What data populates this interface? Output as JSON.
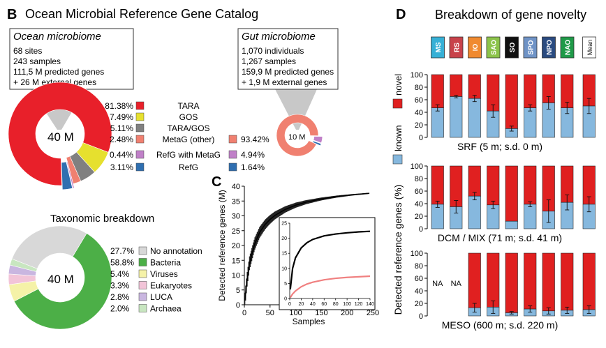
{
  "panel_b": {
    "letter": "B",
    "title": "Ocean Microbial Reference Gene Catalog",
    "ocean_box": {
      "title": "Ocean microbiome",
      "lines": [
        "68 sites",
        "243 samples",
        "111,5 M predicted genes",
        "+ 26 M external genes"
      ]
    },
    "gut_box": {
      "title": "Gut microbiome",
      "lines": [
        "1,070 individuals",
        "1,267 samples",
        "159,9 M predicted genes",
        "+ 1,9 M external genes"
      ]
    },
    "ocean_center": "40 M",
    "gut_center": "10 M",
    "taxo_title": "Taxonomic breakdown",
    "taxo_center": "40 M"
  },
  "panel_c": {
    "letter": "C"
  },
  "panel_d": {
    "letter": "D",
    "title": "Breakdown of gene novelty"
  },
  "colors": {
    "tara": "#e8202a",
    "gos": "#e6e02e",
    "taragos": "#808080",
    "metag": "#f08070",
    "refgmeta": "#c080c8",
    "refg": "#2f6fb0",
    "no_annot": "#d8d8d8",
    "bacteria": "#4caf47",
    "viruses": "#f5f2a8",
    "eukaryotes": "#f2c4d8",
    "luca": "#c9b6e0",
    "archaea": "#c8e6c0",
    "novel": "#e02020",
    "known": "#86b8de"
  },
  "chart_data": [
    {
      "type": "pie",
      "title": "",
      "slices": [
        {
          "label": "TARA",
          "ocean": "81.38%",
          "value": 81.38,
          "color": "#e8202a"
        },
        {
          "label": "GOS",
          "ocean": "7.49%",
          "value": 7.49,
          "color": "#e6e02e"
        },
        {
          "label": "TARA/GOS",
          "ocean": "5.11%",
          "value": 5.11,
          "color": "#808080"
        },
        {
          "label": "MetaG (other)",
          "ocean": "2.48%",
          "value": 2.48,
          "color": "#f08070",
          "gut": "93.42%",
          "gut_value": 93.42
        },
        {
          "label": "RefG with MetaG",
          "ocean": "0.44%",
          "value": 0.44,
          "color": "#c080c8",
          "gut": "4.94%",
          "gut_value": 4.94
        },
        {
          "label": "RefG",
          "ocean": "3.11%",
          "value": 3.11,
          "color": "#2f6fb0",
          "gut": "1.64%",
          "gut_value": 1.64
        }
      ]
    },
    {
      "type": "pie",
      "title": "Taxonomic breakdown",
      "slices": [
        {
          "label": "No annotation",
          "pct": "27.7%",
          "value": 27.7,
          "color": "#d8d8d8"
        },
        {
          "label": "Bacteria",
          "pct": "58.8%",
          "value": 58.8,
          "color": "#4caf47"
        },
        {
          "label": "Viruses",
          "pct": "5.4%",
          "value": 5.4,
          "color": "#f5f2a8"
        },
        {
          "label": "Eukaryotes",
          "pct": "3.3%",
          "value": 3.3,
          "color": "#f2c4d8"
        },
        {
          "label": "LUCA",
          "pct": "2.8%",
          "value": 2.8,
          "color": "#c9b6e0"
        },
        {
          "label": "Archaea",
          "pct": "2.0%",
          "value": 2.0,
          "color": "#c8e6c0"
        }
      ]
    },
    {
      "type": "line",
      "xlabel": "Samples",
      "ylabel": "Detected reference genes (M)",
      "xlim": [
        0,
        250
      ],
      "ylim": [
        0,
        40
      ],
      "xticks": [
        0,
        50,
        100,
        150,
        200,
        250
      ],
      "yticks": [
        0,
        5,
        10,
        15,
        20,
        25,
        30,
        35,
        40
      ],
      "series": [
        {
          "x": [
            1,
            5,
            10,
            20,
            30,
            40,
            50,
            60,
            80,
            100,
            120,
            150,
            180,
            210,
            243
          ],
          "y": [
            1.5,
            8,
            14,
            20.5,
            24.5,
            27,
            28.8,
            30.2,
            32.2,
            33.6,
            34.6,
            35.7,
            36.5,
            37.1,
            37.6
          ]
        }
      ],
      "inset": {
        "xlim": [
          0,
          140
        ],
        "ylim": [
          0,
          25
        ],
        "xticks": [
          0,
          20,
          40,
          60,
          80,
          100,
          120,
          140
        ],
        "yticks": [
          0,
          5,
          10,
          15,
          20,
          25
        ],
        "series": [
          {
            "color": "#000000",
            "x": [
              1,
              5,
              10,
              20,
              30,
              40,
              60,
              80,
              100,
              120,
              140
            ],
            "y": [
              3,
              10,
              13.5,
              16.8,
              18.5,
              19.6,
              20.8,
              21.4,
              21.8,
              22.1,
              22.3
            ]
          },
          {
            "color": "#f08080",
            "x": [
              1,
              5,
              10,
              20,
              30,
              40,
              60,
              80,
              100,
              120,
              140
            ],
            "y": [
              0.3,
              1.5,
              2.5,
              3.9,
              4.8,
              5.4,
              6.2,
              6.7,
              7.0,
              7.2,
              7.4
            ]
          }
        ]
      }
    },
    {
      "type": "bar",
      "title": "Breakdown of gene novelty",
      "ylabel": "Detected reference genes (%)",
      "legend": [
        "novel",
        "known"
      ],
      "ylim": [
        0,
        100
      ],
      "yticks": [
        0,
        20,
        40,
        60,
        80,
        100
      ],
      "categories": [
        {
          "code": "MS",
          "color": "#36b0d6",
          "dark": false
        },
        {
          "code": "RS",
          "color": "#c8424a",
          "dark": false
        },
        {
          "code": "IO",
          "color": "#f08a30",
          "dark": false
        },
        {
          "code": "SAO",
          "color": "#8cc34a",
          "dark": false
        },
        {
          "code": "SO",
          "color": "#111111",
          "dark": false
        },
        {
          "code": "SPO",
          "color": "#6f93c6",
          "dark": false
        },
        {
          "code": "NPO",
          "color": "#2a4b80",
          "dark": false
        },
        {
          "code": "NAO",
          "color": "#1f9a48",
          "dark": false
        },
        {
          "code": "Mean",
          "color": "#ffffff",
          "dark": true
        }
      ],
      "rows": [
        {
          "label": "SRF (5 m; s.d. 0 m)",
          "known": [
            47,
            65,
            62,
            42,
            14,
            47,
            55,
            47,
            50
          ],
          "err": [
            5,
            2,
            5,
            10,
            4,
            5,
            10,
            9,
            12
          ]
        },
        {
          "label": "DCM / MIX (71 m; s.d. 41 m)",
          "known": [
            39,
            35,
            52,
            38,
            12,
            39,
            28,
            42,
            39
          ],
          "err": [
            5,
            10,
            6,
            6,
            0,
            4,
            18,
            12,
            12
          ]
        },
        {
          "label": "MESO (600 m; s.d. 220 m)",
          "known": [
            null,
            null,
            13,
            14,
            5,
            11,
            8,
            9,
            10
          ],
          "err": [
            0,
            0,
            7,
            10,
            2,
            5,
            5,
            5,
            6
          ],
          "na": "NA"
        }
      ]
    }
  ]
}
